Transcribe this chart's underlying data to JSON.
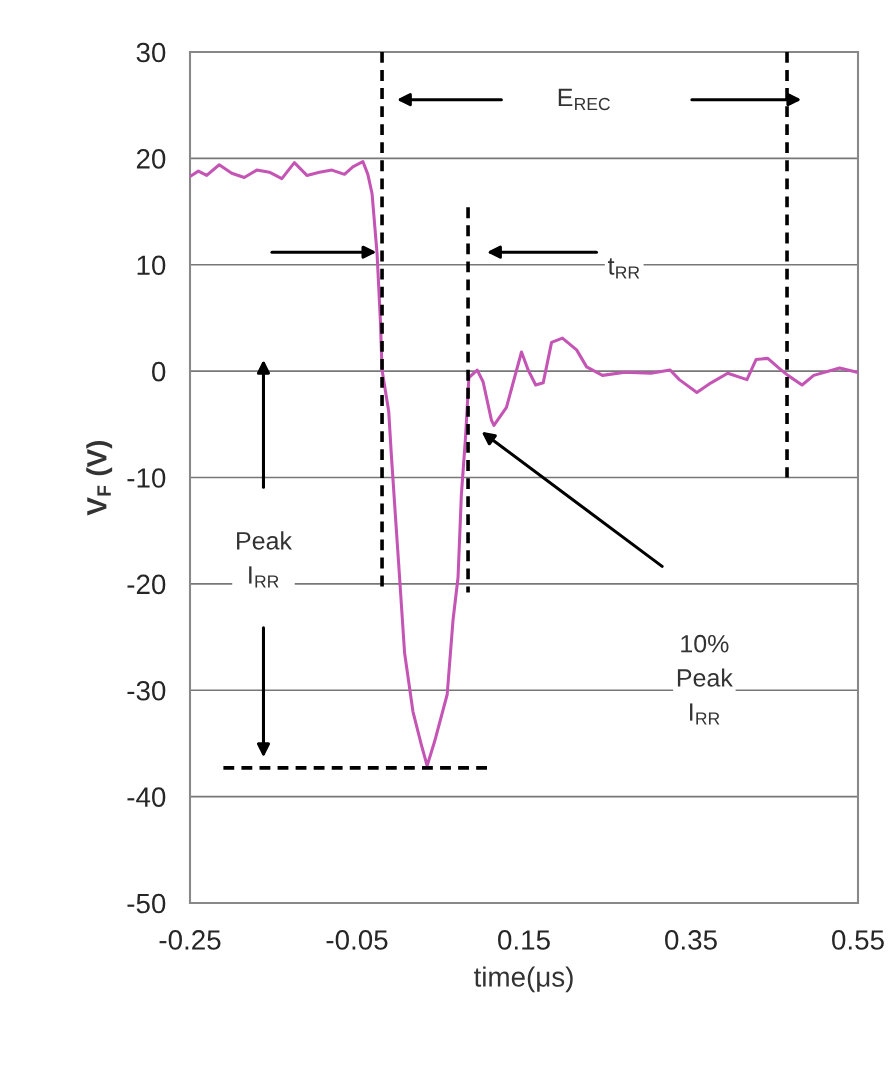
{
  "chart_data": {
    "type": "line",
    "xlabel": "time(μs)",
    "ylabel": "V$_{F}$ (V)",
    "xlim": [
      -0.25,
      0.55
    ],
    "xticks": [
      -0.25,
      -0.05,
      0.15,
      0.35,
      0.55
    ],
    "ylim": [
      -50,
      30
    ],
    "yticks": [
      -50,
      -40,
      -30,
      -20,
      -10,
      0,
      10,
      20,
      30
    ],
    "grid": "y",
    "legend": false,
    "series": [
      {
        "color": "#c455b5",
        "line_style": "solid",
        "x": [
          -0.25,
          -0.24,
          -0.23,
          -0.215,
          -0.2,
          -0.185,
          -0.17,
          -0.155,
          -0.14,
          -0.125,
          -0.11,
          -0.095,
          -0.08,
          -0.065,
          -0.055,
          -0.043,
          -0.037,
          -0.032,
          -0.026,
          -0.022,
          -0.02,
          -0.012,
          -0.009,
          -0.004,
          0.001,
          0.007,
          0.017,
          0.027,
          0.034,
          0.043,
          0.058,
          0.065,
          0.071,
          0.075,
          0.08,
          0.084,
          0.094,
          0.101,
          0.111,
          0.114,
          0.129,
          0.147,
          0.155,
          0.164,
          0.173,
          0.183,
          0.196,
          0.213,
          0.225,
          0.244,
          0.271,
          0.302,
          0.325,
          0.336,
          0.357,
          0.374,
          0.394,
          0.417,
          0.428,
          0.442,
          0.455,
          0.466,
          0.483,
          0.497,
          0.528,
          0.549
        ],
        "values": [
          18.3,
          18.8,
          18.4,
          19.4,
          18.6,
          18.2,
          18.9,
          18.7,
          18.1,
          19.6,
          18.4,
          18.7,
          18.9,
          18.5,
          19.2,
          19.7,
          18.5,
          16.7,
          11.1,
          4.8,
          0.1,
          -3.8,
          -7.7,
          -13.6,
          -19.4,
          -26.5,
          -32,
          -35.1,
          -37.1,
          -34.8,
          -30.4,
          -23.4,
          -19.4,
          -11.6,
          -6.2,
          -0.6,
          0.1,
          -1,
          -4.6,
          -5.1,
          -3.4,
          1.8,
          0.1,
          -1.3,
          -1.1,
          2.7,
          3.1,
          2,
          0.4,
          -0.4,
          -0.1,
          -0.2,
          0.1,
          -0.8,
          -2,
          -1.1,
          -0.2,
          -0.8,
          1.1,
          1.2,
          0.3,
          -0.4,
          -1.3,
          -0.4,
          0.3,
          -0.1
        ]
      },
      {
        "color": "#000000",
        "line_style": "dashed",
        "x": [
          -0.02,
          -0.02
        ],
        "values": [
          30,
          -20.8
        ]
      },
      {
        "color": "#000000",
        "line_style": "dashed",
        "x": [
          0.083,
          0.083
        ],
        "values": [
          15.4,
          -20.8
        ]
      },
      {
        "color": "#000000",
        "line_style": "dashed",
        "x": [
          0.465,
          0.465
        ],
        "values": [
          30,
          -10
        ]
      },
      {
        "color": "#000000",
        "line_style": "dashed",
        "x": [
          -0.21,
          0.106
        ],
        "values": [
          -37.3,
          -37.3
        ]
      }
    ],
    "annotations": [
      "E$_{REC}$",
      "t$_{RR}$",
      "Peak\nI$_{RR}$",
      "10%\nPeak\nI$_{RR}$"
    ]
  }
}
